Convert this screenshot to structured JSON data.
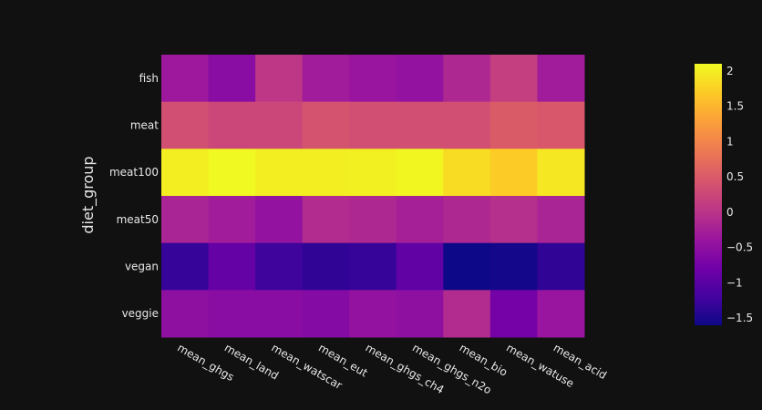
{
  "chart_data": {
    "type": "heatmap",
    "title": "",
    "xlabel": "",
    "ylabel": "diet_group",
    "x_categories": [
      "mean_ghgs",
      "mean_land",
      "mean_watscar",
      "mean_eut",
      "mean_ghgs_ch4",
      "mean_ghgs_n2o",
      "mean_bio",
      "mean_watuse",
      "mean_acid"
    ],
    "y_categories": [
      "fish",
      "meat",
      "meat100",
      "meat50",
      "vegan",
      "veggie"
    ],
    "z": [
      [
        -0.35,
        -0.55,
        0.05,
        -0.3,
        -0.4,
        -0.45,
        -0.15,
        0.15,
        -0.3
      ],
      [
        0.35,
        0.25,
        0.25,
        0.4,
        0.35,
        0.35,
        0.35,
        0.5,
        0.45
      ],
      [
        2.0,
        2.1,
        2.0,
        2.0,
        2.02,
        2.07,
        1.85,
        1.7,
        1.95
      ],
      [
        -0.2,
        -0.3,
        -0.45,
        -0.1,
        -0.15,
        -0.25,
        -0.15,
        -0.05,
        -0.2
      ],
      [
        -1.3,
        -0.9,
        -1.25,
        -1.35,
        -1.3,
        -0.95,
        -1.6,
        -1.55,
        -1.35
      ],
      [
        -0.5,
        -0.55,
        -0.55,
        -0.6,
        -0.45,
        -0.5,
        -0.1,
        -0.75,
        -0.4
      ]
    ],
    "zrange": [
      -1.6,
      2.1
    ],
    "colorscale": "plasma",
    "colorbar": {
      "ticks": [
        2,
        1.5,
        1,
        0.5,
        0,
        -0.5,
        -1,
        -1.5
      ],
      "tick_labels": [
        "2",
        "1.5",
        "1",
        "0.5",
        "0",
        "−0.5",
        "−1",
        "−1.5"
      ]
    }
  }
}
